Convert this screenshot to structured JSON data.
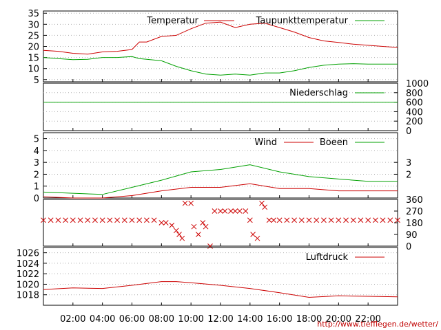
{
  "chart_data": [
    {
      "type": "line",
      "panel": "temperature",
      "x": [
        "00:00",
        "01:00",
        "02:00",
        "03:00",
        "04:00",
        "05:00",
        "06:00",
        "06:30",
        "07:00",
        "08:00",
        "09:00",
        "10:00",
        "11:00",
        "12:00",
        "13:00",
        "14:00",
        "15:00",
        "16:00",
        "17:00",
        "18:00",
        "19:00",
        "20:00",
        "21:00",
        "22:00",
        "23:00",
        "24:00"
      ],
      "series": [
        {
          "name": "Temperatur",
          "color": "#cc0000",
          "values": [
            18.2,
            17.8,
            16.9,
            16.5,
            17.5,
            17.8,
            18.6,
            22.0,
            22.0,
            24.5,
            25.0,
            28.0,
            30.5,
            31.0,
            28.5,
            30.0,
            30.5,
            28.5,
            26.5,
            24.0,
            22.5,
            21.8,
            21.0,
            20.5,
            20.0,
            19.5
          ]
        },
        {
          "name": "Taupunkttemperatur",
          "color": "#00a000",
          "values": [
            15.0,
            14.5,
            14.0,
            14.2,
            15.0,
            15.0,
            15.4,
            14.5,
            14.2,
            13.5,
            11.0,
            9.0,
            7.5,
            7.0,
            7.5,
            7.0,
            8.0,
            8.0,
            9.0,
            10.5,
            11.5,
            12.0,
            12.2,
            12.0,
            12.0,
            12.0
          ]
        }
      ],
      "y_ticks": [
        "5",
        "10",
        "15",
        "20",
        "25",
        "30",
        "35"
      ],
      "ylim": [
        4,
        36
      ],
      "legend_placement": "top"
    },
    {
      "type": "line",
      "panel": "precipitation",
      "x": [
        "00:00",
        "24:00"
      ],
      "series": [
        {
          "name": "Niederschlag",
          "color": "#00a000",
          "values": [
            600,
            600
          ]
        }
      ],
      "y_ticks": [
        "0",
        "200",
        "400",
        "600",
        "800",
        "1000"
      ],
      "ylim": [
        0,
        1000
      ],
      "axis_side": "right",
      "legend_placement": "top-right"
    },
    {
      "type": "line",
      "panel": "wind",
      "x": [
        "00:00",
        "02:00",
        "04:00",
        "06:00",
        "08:00",
        "10:00",
        "12:00",
        "14:00",
        "16:00",
        "18:00",
        "20:00",
        "22:00",
        "24:00"
      ],
      "series": [
        {
          "name": "Wind",
          "color": "#cc0000",
          "values": [
            0.1,
            0,
            0,
            0.2,
            0.6,
            0.9,
            0.9,
            1.2,
            0.8,
            0.8,
            0.6,
            0.6,
            0.6
          ]
        },
        {
          "name": "Boeen",
          "color": "#00a000",
          "values": [
            0.5,
            0.4,
            0.3,
            0.9,
            1.5,
            2.2,
            2.4,
            2.8,
            2.2,
            1.8,
            1.6,
            1.4,
            1.4
          ]
        }
      ],
      "y_ticks": [
        "0",
        "1",
        "2",
        "3",
        "4",
        "5"
      ],
      "right_ticks": [
        "2",
        "3"
      ],
      "ylim": [
        0,
        5.5
      ],
      "legend_placement": "top"
    },
    {
      "type": "scatter",
      "panel": "wind-direction",
      "x_hours": [
        0,
        0.5,
        1,
        1.5,
        2,
        2.5,
        3,
        3.5,
        4,
        4.5,
        5,
        5.5,
        6,
        6.5,
        7,
        7.5,
        8,
        8.3,
        8.7,
        9,
        9.2,
        9.4,
        9.6,
        10,
        10.2,
        10.5,
        10.8,
        11,
        11.3,
        11.6,
        12,
        12.3,
        12.7,
        13,
        13.3,
        13.7,
        14,
        14.2,
        14.5,
        14.8,
        15,
        15.3,
        15.6,
        16,
        16.5,
        17,
        17.5,
        18,
        18.5,
        19,
        19.5,
        20,
        20.5,
        21,
        21.5,
        22,
        22.5,
        23,
        23.5,
        24
      ],
      "y_deg": [
        200,
        200,
        200,
        200,
        200,
        200,
        200,
        200,
        200,
        200,
        200,
        200,
        200,
        200,
        200,
        200,
        180,
        180,
        160,
        120,
        90,
        60,
        330,
        330,
        150,
        90,
        180,
        150,
        0,
        270,
        270,
        270,
        270,
        270,
        270,
        270,
        200,
        90,
        60,
        330,
        300,
        200,
        200,
        200,
        200,
        200,
        200,
        200,
        200,
        200,
        200,
        200,
        200,
        200,
        200,
        200,
        200,
        200,
        200,
        200
      ],
      "y_ticks": [
        "0",
        "90",
        "180",
        "270",
        "360"
      ],
      "ylim": [
        0,
        360
      ],
      "axis_side": "right",
      "marker": "x",
      "color": "#cc0000"
    },
    {
      "type": "line",
      "panel": "pressure",
      "x": [
        "00:00",
        "02:00",
        "04:00",
        "06:00",
        "08:00",
        "09:00",
        "10:00",
        "12:00",
        "14:00",
        "16:00",
        "18:00",
        "20:00",
        "22:00",
        "24:00"
      ],
      "series": [
        {
          "name": "Luftdruck",
          "color": "#cc0000",
          "values": [
            1019.0,
            1019.3,
            1019.2,
            1019.8,
            1020.5,
            1020.5,
            1020.3,
            1019.8,
            1019.2,
            1018.4,
            1017.5,
            1017.8,
            1017.7,
            1017.6
          ]
        }
      ],
      "y_ticks": [
        "1018",
        "1020",
        "1022",
        "1024",
        "1026"
      ],
      "ylim": [
        1016,
        1027
      ],
      "legend_placement": "top-right"
    }
  ],
  "x_axis": {
    "labels": [
      "02:00",
      "04:00",
      "06:00",
      "08:00",
      "10:00",
      "12:00",
      "14:00",
      "16:00",
      "18:00",
      "20:00",
      "22:00"
    ],
    "label_hours": [
      2,
      4,
      6,
      8,
      10,
      12,
      14,
      16,
      18,
      20,
      22
    ]
  },
  "credit": "http://www.tiefflegen.de/wetter/"
}
